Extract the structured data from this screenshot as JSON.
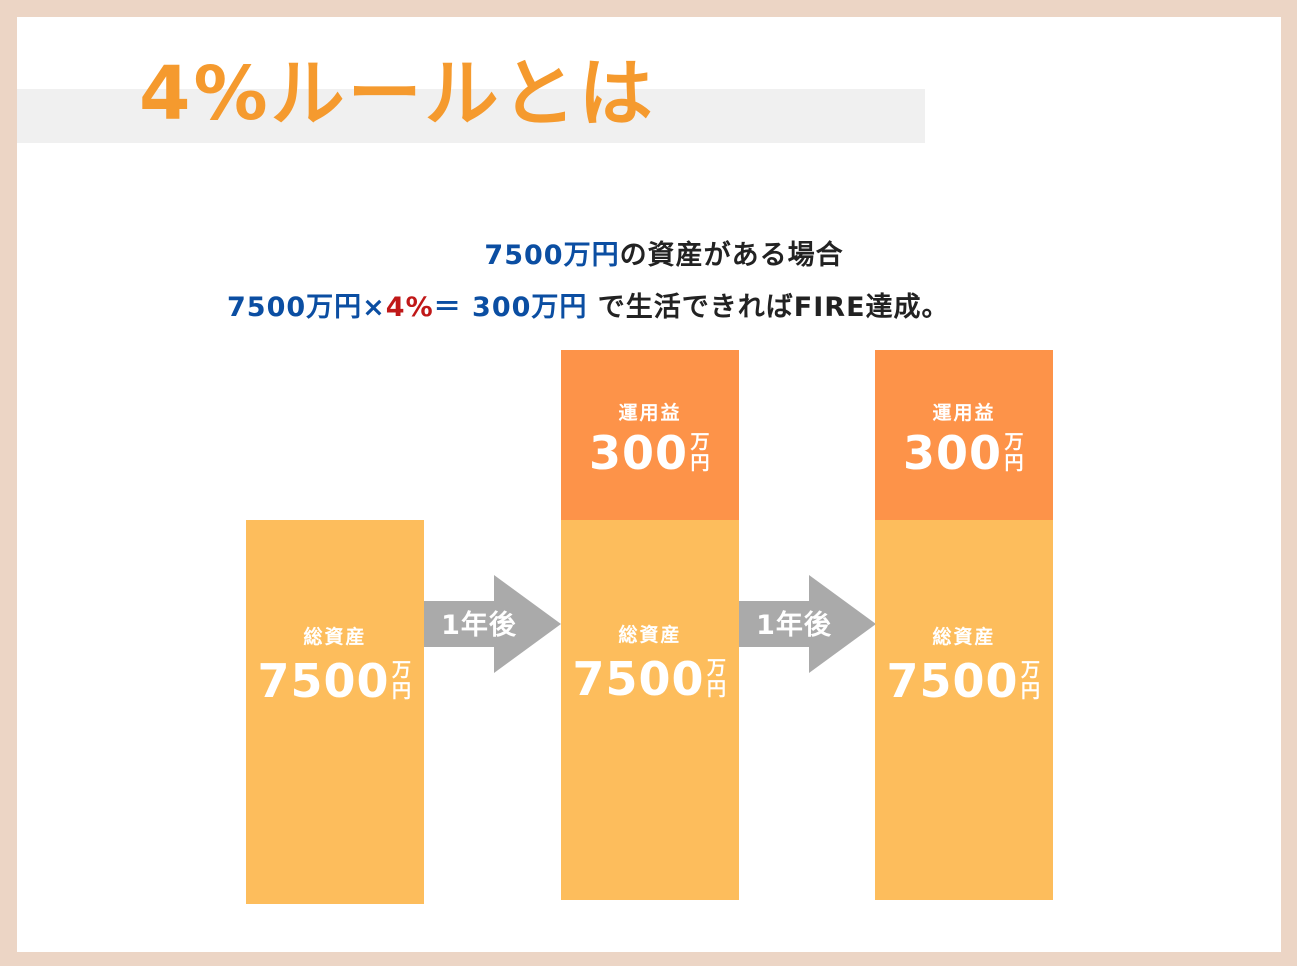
{
  "title": "4%ルールとは",
  "line1": {
    "amount": "7500万円",
    "rest": "の資産がある場合"
  },
  "line2": {
    "amount": "7500万円",
    "times": "×",
    "rate": "4%",
    "equals": "＝ ",
    "result": "300万円",
    "rest": " で生活できればFIRE達成。"
  },
  "columns": [
    {
      "total_label": "総資産",
      "total_value": "7500",
      "unit_top": "万",
      "unit_bottom": "円"
    },
    {
      "gain_label": "運用益",
      "gain_value": "300",
      "total_label": "総資産",
      "total_value": "7500",
      "unit_top": "万",
      "unit_bottom": "円"
    },
    {
      "gain_label": "運用益",
      "gain_value": "300",
      "total_label": "総資産",
      "total_value": "7500",
      "unit_top": "万",
      "unit_bottom": "円"
    }
  ],
  "arrows": [
    "1年後",
    "1年後"
  ],
  "colors": {
    "title": "#f59a2e",
    "total_bar": "#fdbd5c",
    "gain_bar": "#fd9349",
    "arrow": "#aaaaaa",
    "highlight_blue": "#0b4ea2",
    "highlight_red": "#c01818"
  }
}
